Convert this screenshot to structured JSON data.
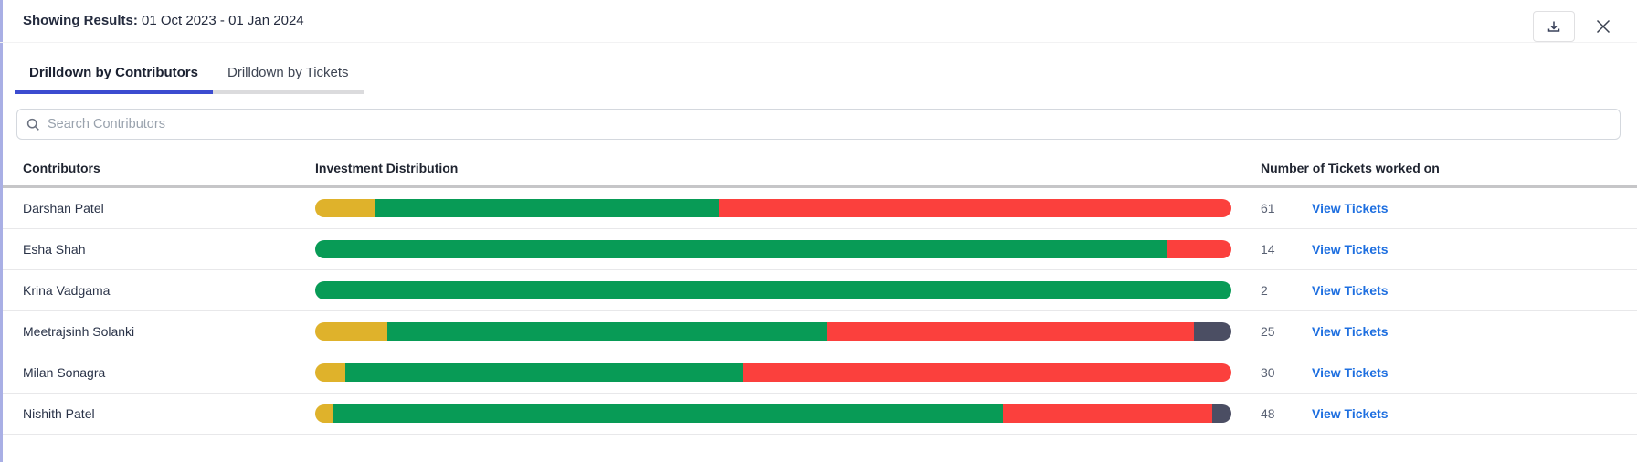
{
  "header": {
    "label": "Showing Results:",
    "date_range": "01 Oct 2023 - 01 Jan 2024"
  },
  "icons": {
    "download": "download-icon",
    "close": "close-icon",
    "search": "search-icon"
  },
  "tabs": [
    {
      "label": "Drilldown by Contributors",
      "active": true
    },
    {
      "label": "Drilldown by Tickets",
      "active": false
    }
  ],
  "search": {
    "placeholder": "Search Contributors"
  },
  "table": {
    "columns": [
      "Contributors",
      "Investment Distribution",
      "Number of Tickets worked on"
    ],
    "link_label": "View Tickets",
    "rows": [
      {
        "name": "Darshan Patel",
        "tickets": "61",
        "segments": [
          {
            "color": "yellow",
            "pct": 6.5
          },
          {
            "color": "green",
            "pct": 37.6
          },
          {
            "color": "red",
            "pct": 55.9
          }
        ]
      },
      {
        "name": "Esha Shah",
        "tickets": "14",
        "segments": [
          {
            "color": "green",
            "pct": 92.9
          },
          {
            "color": "red",
            "pct": 7.1
          }
        ]
      },
      {
        "name": "Krina Vadgama",
        "tickets": "2",
        "segments": [
          {
            "color": "green",
            "pct": 100
          }
        ]
      },
      {
        "name": "Meetrajsinh Solanki",
        "tickets": "25",
        "segments": [
          {
            "color": "yellow",
            "pct": 7.9
          },
          {
            "color": "green",
            "pct": 47.9
          },
          {
            "color": "red",
            "pct": 40.1
          },
          {
            "color": "dark",
            "pct": 4.1
          }
        ]
      },
      {
        "name": "Milan Sonagra",
        "tickets": "30",
        "segments": [
          {
            "color": "yellow",
            "pct": 3.3
          },
          {
            "color": "green",
            "pct": 43.4
          },
          {
            "color": "red",
            "pct": 53.3
          }
        ]
      },
      {
        "name": "Nishith Patel",
        "tickets": "48",
        "segments": [
          {
            "color": "yellow",
            "pct": 2.0
          },
          {
            "color": "green",
            "pct": 73.1
          },
          {
            "color": "red",
            "pct": 22.8
          },
          {
            "color": "dark",
            "pct": 2.1
          }
        ]
      }
    ]
  },
  "colors": {
    "yellow": "#DFB22B",
    "green": "#089B56",
    "red": "#FB403D",
    "dark": "#4B4E63",
    "accent": "#3C4CD0",
    "link": "#1E6FE0"
  }
}
